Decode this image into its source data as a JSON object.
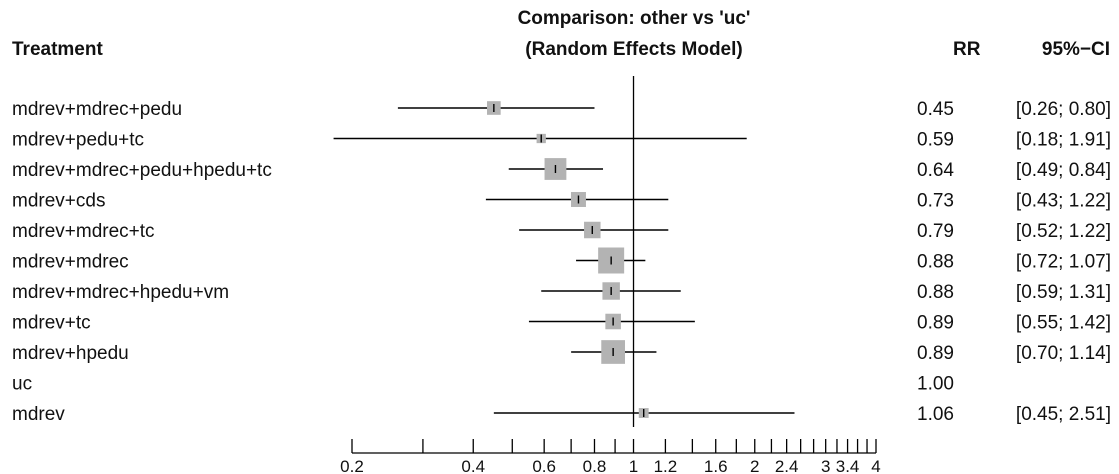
{
  "chart_data": {
    "type": "forest",
    "title_line1": "Comparison: other vs 'uc'",
    "title_line2": "(Random Effects Model)",
    "col_treatment": "Treatment",
    "col_rr": "RR",
    "col_ci": "95%−CI",
    "x_scale": "log",
    "reference_value": 1,
    "x_ticks": [
      0.2,
      0.4,
      0.6,
      0.8,
      1,
      1.2,
      1.6,
      2,
      2.4,
      3,
      3.4,
      4
    ],
    "x_tick_labels": [
      "0.2",
      "0.4",
      "0.6",
      "0.8",
      "1",
      "1.2",
      "1.6",
      "2",
      "2.4",
      "3",
      "3.4",
      "4"
    ],
    "minor_ticks": [
      0.3,
      0.5,
      0.7,
      0.9,
      1.4,
      1.8,
      2.2,
      2.6,
      2.8,
      3.2,
      3.6,
      3.8
    ],
    "rows": [
      {
        "treatment": "mdrev+mdrec+pedu",
        "rr": 0.45,
        "lo": 0.26,
        "hi": 0.8,
        "rr_text": "0.45",
        "ci_text": "[0.26; 0.80]",
        "weight": 0.35
      },
      {
        "treatment": "mdrev+pedu+tc",
        "rr": 0.59,
        "lo": 0.18,
        "hi": 1.91,
        "rr_text": "0.59",
        "ci_text": "[0.18; 1.91]",
        "weight": 0.12
      },
      {
        "treatment": "mdrev+mdrec+pedu+hpedu+tc",
        "rr": 0.64,
        "lo": 0.49,
        "hi": 0.84,
        "rr_text": "0.64",
        "ci_text": "[0.49; 0.84]",
        "weight": 0.78
      },
      {
        "treatment": "mdrev+cds",
        "rr": 0.73,
        "lo": 0.43,
        "hi": 1.22,
        "rr_text": "0.73",
        "ci_text": "[0.43; 1.22]",
        "weight": 0.42
      },
      {
        "treatment": "mdrev+mdrec+tc",
        "rr": 0.79,
        "lo": 0.52,
        "hi": 1.22,
        "rr_text": "0.79",
        "ci_text": "[0.52; 1.22]",
        "weight": 0.5
      },
      {
        "treatment": "mdrev+mdrec",
        "rr": 0.88,
        "lo": 0.72,
        "hi": 1.07,
        "rr_text": "0.88",
        "ci_text": "[0.72; 1.07]",
        "weight": 1.0
      },
      {
        "treatment": "mdrev+mdrec+hpedu+vm",
        "rr": 0.88,
        "lo": 0.59,
        "hi": 1.31,
        "rr_text": "0.88",
        "ci_text": "[0.59; 1.31]",
        "weight": 0.55
      },
      {
        "treatment": "mdrev+tc",
        "rr": 0.89,
        "lo": 0.55,
        "hi": 1.42,
        "rr_text": "0.89",
        "ci_text": "[0.55; 1.42]",
        "weight": 0.45
      },
      {
        "treatment": "mdrev+hpedu",
        "rr": 0.89,
        "lo": 0.7,
        "hi": 1.14,
        "rr_text": "0.89",
        "ci_text": "[0.70; 1.14]",
        "weight": 0.88
      },
      {
        "treatment": "uc",
        "rr": 1.0,
        "lo": null,
        "hi": null,
        "rr_text": "1.00",
        "ci_text": "",
        "weight": 0
      },
      {
        "treatment": "mdrev",
        "rr": 1.06,
        "lo": 0.45,
        "hi": 2.51,
        "rr_text": "1.06",
        "ci_text": "[0.45; 2.51]",
        "weight": 0.15
      }
    ],
    "colors": {
      "box": "#b3b3b3",
      "line": "#000000",
      "text": "#111111"
    }
  }
}
